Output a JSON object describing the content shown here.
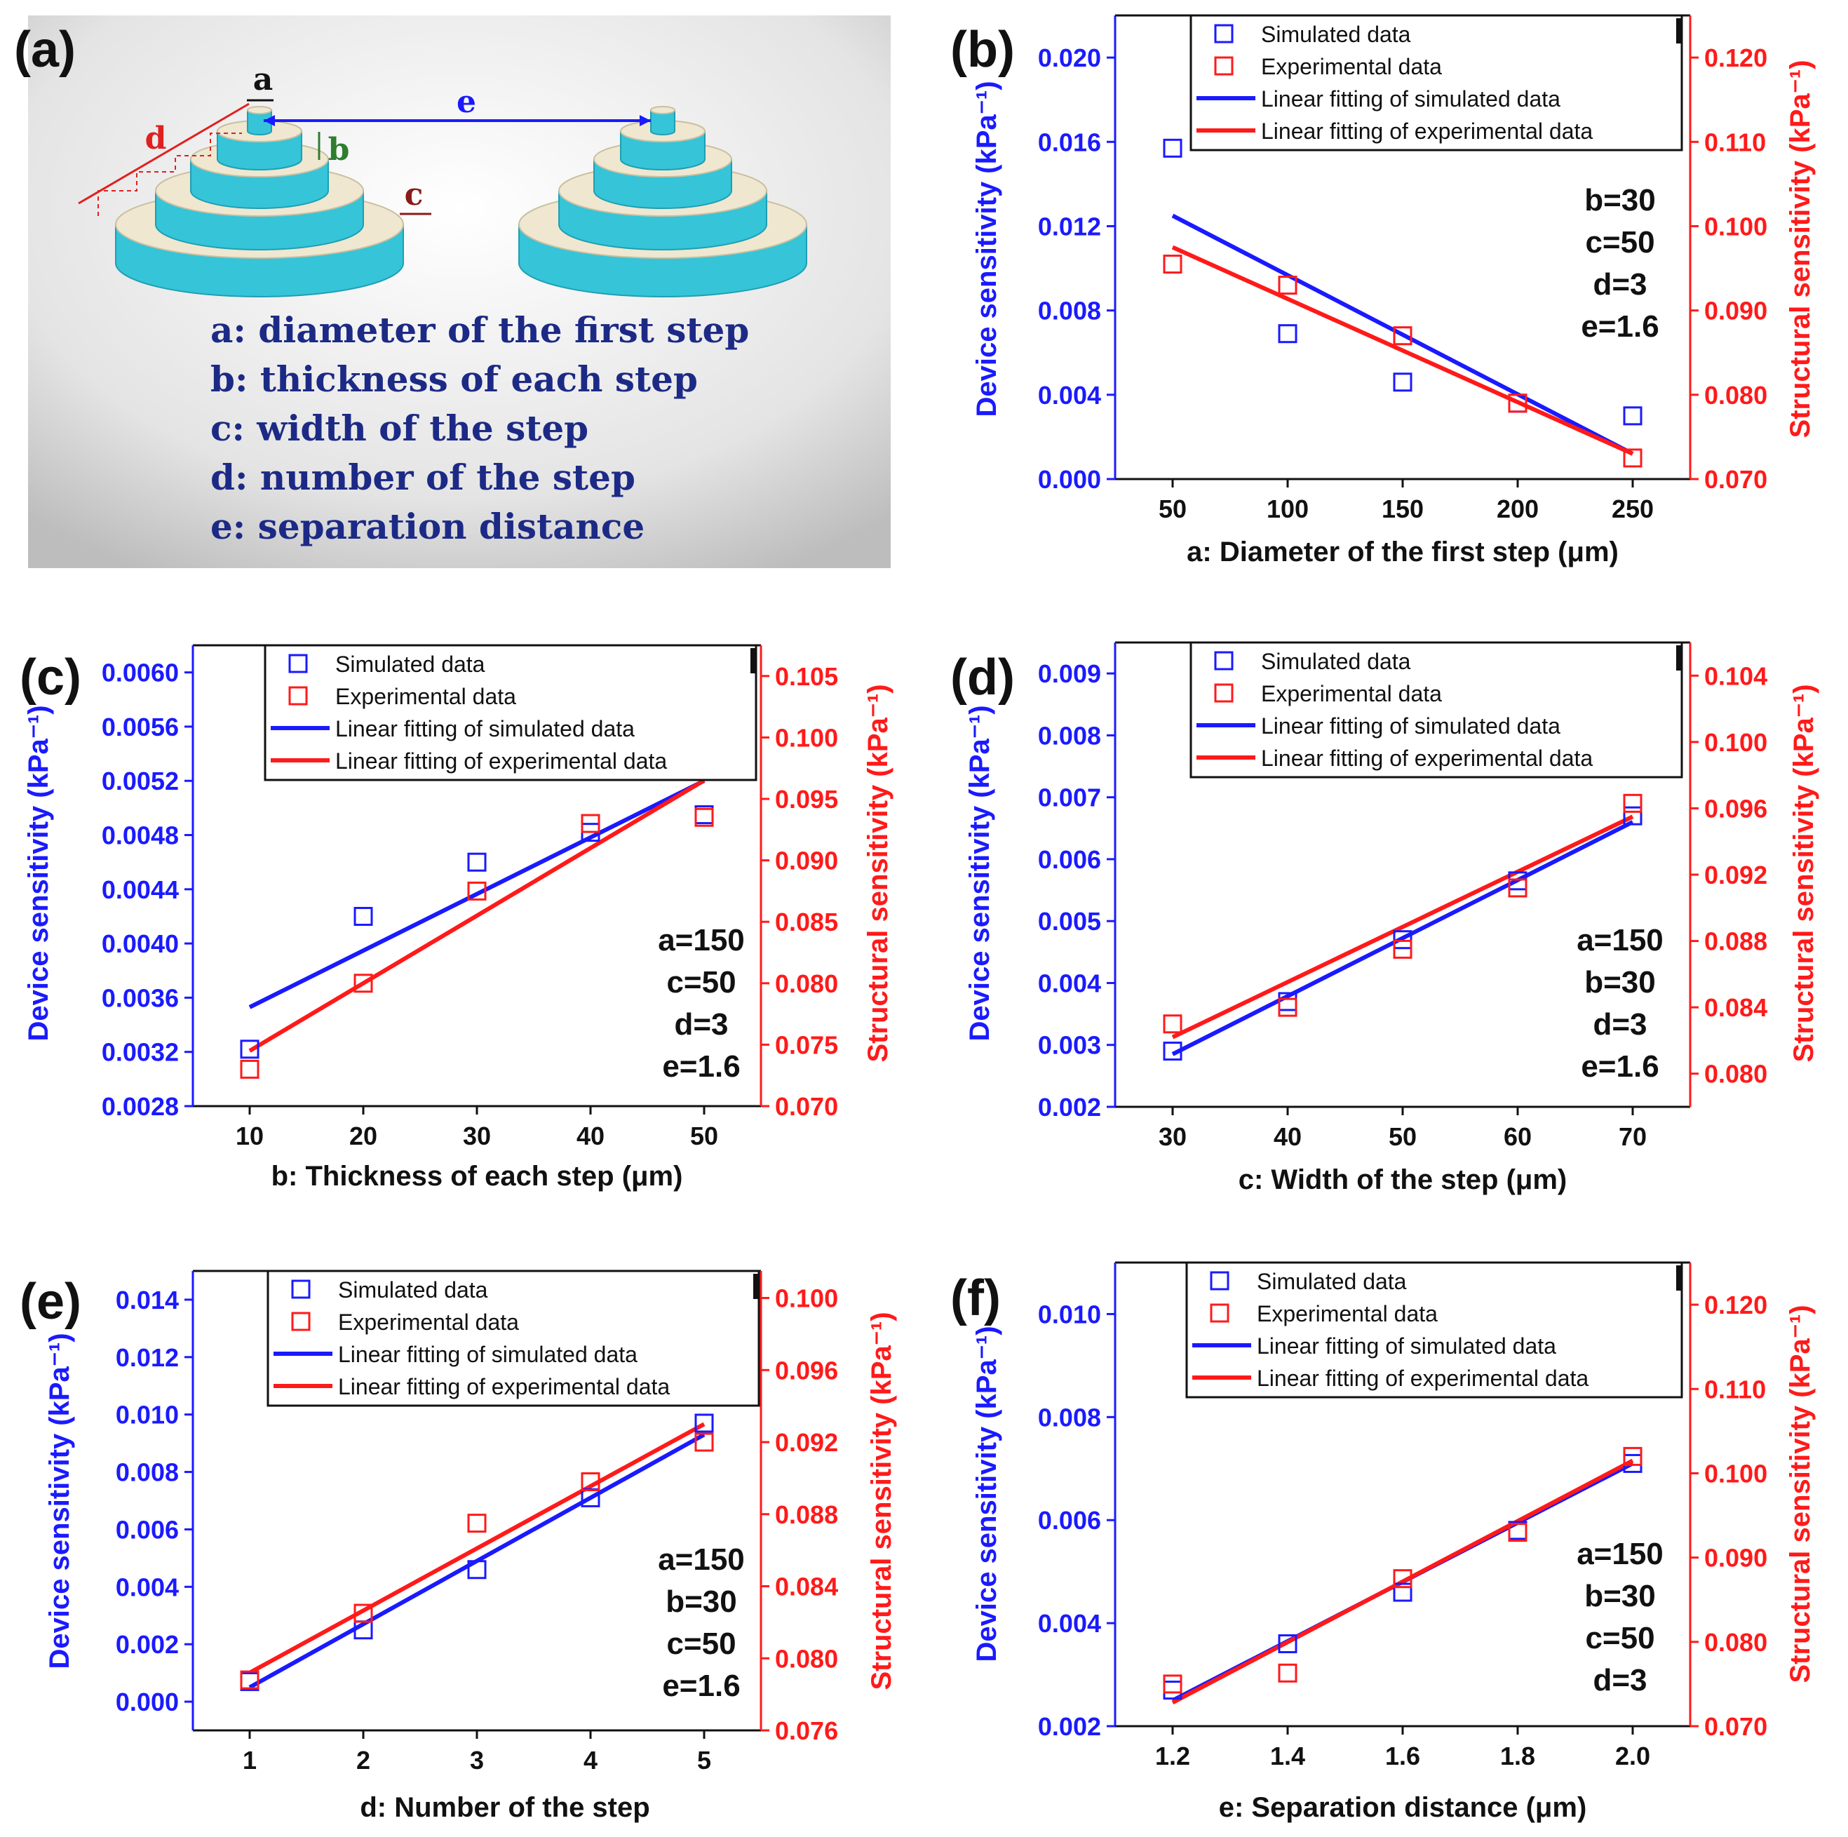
{
  "colors": {
    "blue": "#1a1aff",
    "red": "#ff1a1a",
    "dark_blue": "#1c2a86",
    "cyan": "#35c4d8",
    "beige": "#efe7d0"
  },
  "schematic": {
    "label": "(a)",
    "letters": [
      "a",
      "b",
      "c",
      "d",
      "e"
    ],
    "definitions": [
      "a: diameter of the first step",
      "b: thickness of each step",
      "c:  width of the step",
      "d: number of the step",
      "e: separation distance"
    ]
  },
  "legend": {
    "items": [
      "Simulated data",
      "Experimental data",
      "Linear fitting of simulated data",
      "Linear fitting of experimental data"
    ]
  },
  "chart_data": [
    {
      "label": "(b)",
      "type": "scatter",
      "xlabel": "a:  Diameter of the first step (μm)",
      "ylabel_left": "Device sensitivity (kPa⁻¹)",
      "ylabel_right": "Structural sensitivity (kPa⁻¹)",
      "xlim": [
        25,
        275
      ],
      "xticks": [
        50,
        100,
        150,
        200,
        250
      ],
      "xtick_labels": [
        "50",
        "100",
        "150",
        "200",
        "250"
      ],
      "ylim_left": [
        0,
        0.022
      ],
      "yticks_left": [
        0,
        0.004,
        0.008,
        0.012,
        0.016,
        0.02
      ],
      "ytick_labels_left": [
        "0.000",
        "0.004",
        "0.008",
        "0.012",
        "0.016",
        "0.020"
      ],
      "ylim_right": [
        0.07,
        0.125
      ],
      "yticks_right": [
        0.07,
        0.08,
        0.09,
        0.1,
        0.11,
        0.12
      ],
      "ytick_labels_right": [
        "0.070",
        "0.080",
        "0.090",
        "0.100",
        "0.110",
        "0.120"
      ],
      "x": [
        50,
        100,
        150,
        200,
        250
      ],
      "simulated": [
        0.0157,
        0.0069,
        0.0046,
        0.0036,
        0.003
      ],
      "experimental": [
        0.0955,
        0.093,
        0.087,
        0.079,
        0.0725
      ],
      "fit_simulated": [
        0.0125,
        0.0012
      ],
      "fit_experimental": [
        0.0975,
        0.073
      ],
      "params": [
        "b=30",
        "c=50",
        "d=3",
        "e=1.6"
      ]
    },
    {
      "label": "(c)",
      "type": "scatter",
      "xlabel": "b:  Thickness of each step (μm)",
      "ylabel_left": "Device sensitivity (kPa⁻¹)",
      "ylabel_right": "Structural sensitivity (kPa⁻¹)",
      "xlim": [
        5,
        55
      ],
      "xticks": [
        10,
        20,
        30,
        40,
        50
      ],
      "xtick_labels": [
        "10",
        "20",
        "30",
        "40",
        "50"
      ],
      "ylim_left": [
        0.0028,
        0.0062
      ],
      "yticks_left": [
        0.0028,
        0.0032,
        0.0036,
        0.004,
        0.0044,
        0.0048,
        0.0052,
        0.0056,
        0.006
      ],
      "ytick_labels_left": [
        "0.0028",
        "0.0032",
        "0.0036",
        "0.0040",
        "0.0044",
        "0.0048",
        "0.0052",
        "0.0056",
        "0.0060"
      ],
      "ylim_right": [
        0.07,
        0.1075
      ],
      "yticks_right": [
        0.07,
        0.075,
        0.08,
        0.085,
        0.09,
        0.095,
        0.1,
        0.105
      ],
      "ytick_labels_right": [
        "0.070",
        "0.075",
        "0.080",
        "0.085",
        "0.090",
        "0.095",
        "0.100",
        "0.105"
      ],
      "x": [
        10,
        20,
        30,
        40,
        50
      ],
      "simulated": [
        0.00322,
        0.0042,
        0.0046,
        0.00482,
        0.00495
      ],
      "experimental": [
        0.073,
        0.08,
        0.0875,
        0.093,
        0.0935
      ],
      "fit_simulated": [
        0.00353,
        0.0052
      ],
      "fit_experimental": [
        0.0745,
        0.0965
      ],
      "params": [
        "a=150",
        "c=50",
        "d=3",
        "e=1.6"
      ]
    },
    {
      "label": "(d)",
      "type": "scatter",
      "xlabel": "c:   Width of the step (μm)",
      "ylabel_left": "Device sensitivity (kPa⁻¹)",
      "ylabel_right": "Structural sensitivity (kPa⁻¹)",
      "xlim": [
        25,
        75
      ],
      "xticks": [
        30,
        40,
        50,
        60,
        70
      ],
      "xtick_labels": [
        "30",
        "40",
        "50",
        "60",
        "70"
      ],
      "ylim_left": [
        0.002,
        0.0095
      ],
      "yticks_left": [
        0.002,
        0.003,
        0.004,
        0.005,
        0.006,
        0.007,
        0.008,
        0.009
      ],
      "ytick_labels_left": [
        "0.002",
        "0.003",
        "0.004",
        "0.005",
        "0.006",
        "0.007",
        "0.008",
        "0.009"
      ],
      "ylim_right": [
        0.078,
        0.106
      ],
      "yticks_right": [
        0.08,
        0.084,
        0.088,
        0.092,
        0.096,
        0.1,
        0.104
      ],
      "ytick_labels_right": [
        "0.080",
        "0.084",
        "0.088",
        "0.092",
        "0.096",
        "0.100",
        "0.104"
      ],
      "x": [
        30,
        40,
        50,
        60,
        70
      ],
      "simulated": [
        0.0029,
        0.0037,
        0.0047,
        0.00565,
        0.0067
      ],
      "experimental": [
        0.083,
        0.084,
        0.0875,
        0.0912,
        0.0963
      ],
      "fit_simulated": [
        0.00285,
        0.0066
      ],
      "fit_experimental": [
        0.0822,
        0.0955
      ],
      "params": [
        "a=150",
        "b=30",
        "d=3",
        "e=1.6"
      ]
    },
    {
      "label": "(e)",
      "type": "scatter",
      "xlabel": "d:  Number of the step",
      "ylabel_left": "Device sensitivity (kPa⁻¹)",
      "ylabel_right": "Structural sensitivity (kPa⁻¹)",
      "xlim": [
        0.5,
        5.5
      ],
      "xticks": [
        1,
        2,
        3,
        4,
        5
      ],
      "xtick_labels": [
        "1",
        "2",
        "3",
        "4",
        "5"
      ],
      "ylim_left": [
        -0.001,
        0.015
      ],
      "yticks_left": [
        0,
        0.002,
        0.004,
        0.006,
        0.008,
        0.01,
        0.012,
        0.014
      ],
      "ytick_labels_left": [
        "0.000",
        "0.002",
        "0.004",
        "0.006",
        "0.008",
        "0.010",
        "0.012",
        "0.014"
      ],
      "ylim_right": [
        0.076,
        0.1015
      ],
      "yticks_right": [
        0.076,
        0.08,
        0.084,
        0.088,
        0.092,
        0.096,
        0.1
      ],
      "ytick_labels_right": [
        "0.076",
        "0.080",
        "0.084",
        "0.088",
        "0.092",
        "0.096",
        "0.100"
      ],
      "x": [
        1,
        2,
        3,
        4,
        5
      ],
      "simulated": [
        0.0007,
        0.0025,
        0.0046,
        0.0071,
        0.0097
      ],
      "experimental": [
        0.0788,
        0.0825,
        0.0875,
        0.0898,
        0.092
      ],
      "fit_simulated": [
        0.0005,
        0.0093
      ],
      "fit_experimental": [
        0.0792,
        0.093
      ],
      "params": [
        "a=150",
        "b=30",
        "c=50",
        "e=1.6"
      ]
    },
    {
      "label": "(f)",
      "type": "scatter",
      "xlabel": "e:  Separation distance (μm)",
      "ylabel_left": "Device sensitivity (kPa⁻¹)",
      "ylabel_right": "Structural sensitivity (kPa⁻¹)",
      "xlim": [
        1.1,
        2.1
      ],
      "xticks": [
        1.2,
        1.4,
        1.6,
        1.8,
        2.0
      ],
      "xtick_labels": [
        "1.2",
        "1.4",
        "1.6",
        "1.8",
        "2.0"
      ],
      "ylim_left": [
        0.002,
        0.011
      ],
      "yticks_left": [
        0.002,
        0.004,
        0.006,
        0.008,
        0.01
      ],
      "ytick_labels_left": [
        "0.002",
        "0.004",
        "0.006",
        "0.008",
        "0.010"
      ],
      "ylim_right": [
        0.07,
        0.125
      ],
      "yticks_right": [
        0.07,
        0.08,
        0.09,
        0.1,
        0.11,
        0.12
      ],
      "ytick_labels_right": [
        "0.070",
        "0.080",
        "0.090",
        "0.100",
        "0.110",
        "0.120"
      ],
      "x": [
        1.2,
        1.4,
        1.6,
        1.8,
        2.0
      ],
      "simulated": [
        0.0027,
        0.0036,
        0.0046,
        0.0058,
        0.0071
      ],
      "experimental": [
        0.075,
        0.0763,
        0.0875,
        0.093,
        0.102
      ],
      "fit_simulated": [
        0.0025,
        0.0071
      ],
      "fit_experimental": [
        0.0728,
        0.1015
      ],
      "params": [
        "a=150",
        "b=30",
        "c=50",
        "d=3"
      ]
    }
  ]
}
